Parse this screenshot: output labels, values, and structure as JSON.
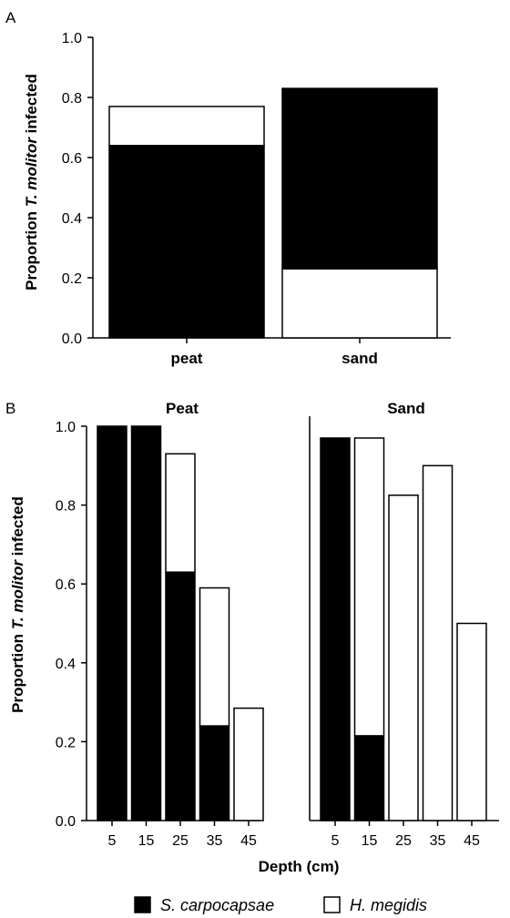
{
  "colors": {
    "s_carpocapsae": "#000000",
    "h_megidis": "#ffffff",
    "stroke": "#000000"
  },
  "legend": {
    "s_carpocapsae": "S. carpocapsae",
    "h_megidis": "H. megidis"
  },
  "chart_data": [
    {
      "type": "bar",
      "stacked": true,
      "panel_label": "A",
      "ylabel": {
        "pre": "Proportion ",
        "ital": "T. molitor",
        "post": " infected"
      },
      "ylim": [
        0,
        1.0
      ],
      "yticks": [
        "0.0",
        "0.2",
        "0.4",
        "0.6",
        "0.8",
        "1.0"
      ],
      "categories": [
        "peat",
        "sand"
      ],
      "series": [
        {
          "name": "S. carpocapsae",
          "key": "s_carpocapsae",
          "values": [
            0.64,
            0.6
          ]
        },
        {
          "name": "H. megidis",
          "key": "h_megidis",
          "values": [
            0.13,
            0.23
          ]
        }
      ],
      "stack_order": [
        [
          "s_carpocapsae",
          "h_megidis"
        ],
        [
          "h_megidis",
          "s_carpocapsae"
        ]
      ]
    },
    {
      "type": "bar",
      "stacked": true,
      "panel_label": "B",
      "ylabel": {
        "pre": "Proportion ",
        "ital": "T. molitor",
        "post": " infected"
      },
      "xlabel": "Depth (cm)",
      "ylim": [
        0,
        1.0
      ],
      "yticks": [
        "0.0",
        "0.2",
        "0.4",
        "0.6",
        "0.8",
        "1.0"
      ],
      "facets": [
        {
          "title": "Peat",
          "categories": [
            "5",
            "15",
            "25",
            "35",
            "45"
          ],
          "series": [
            {
              "name": "S. carpocapsae",
              "key": "s_carpocapsae",
              "values": [
                1.0,
                1.0,
                0.63,
                0.24,
                0.0
              ]
            },
            {
              "name": "H. megidis",
              "key": "h_megidis",
              "values": [
                0.0,
                0.0,
                0.3,
                0.35,
                0.285
              ]
            }
          ]
        },
        {
          "title": "Sand",
          "categories": [
            "5",
            "15",
            "25",
            "35",
            "45"
          ],
          "series": [
            {
              "name": "S. carpocapsae",
              "key": "s_carpocapsae",
              "values": [
                0.97,
                0.215,
                0.0,
                0.0,
                0.0
              ]
            },
            {
              "name": "H. megidis",
              "key": "h_megidis",
              "values": [
                0.0,
                0.755,
                0.825,
                0.9,
                0.5
              ]
            }
          ]
        }
      ]
    }
  ]
}
